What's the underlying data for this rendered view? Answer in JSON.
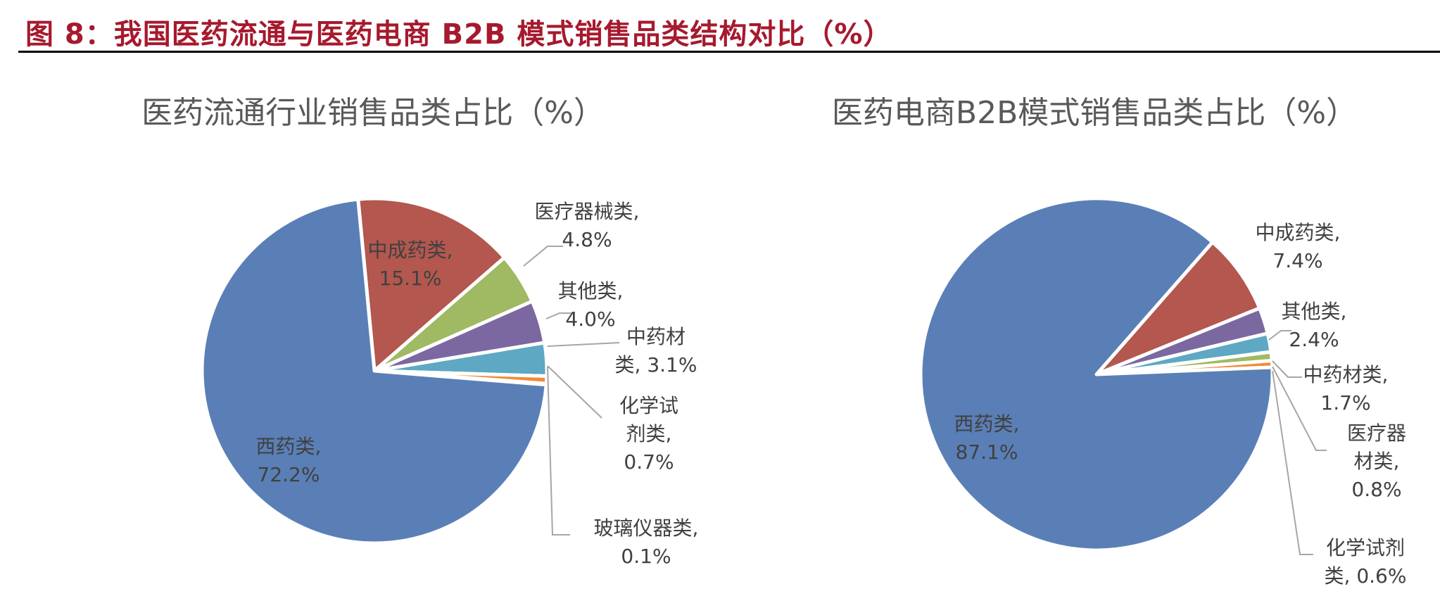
{
  "figure_title": "图 8：我国医药流通与医药电商 B2B 模式销售品类结构对比（%）",
  "colors": {
    "title_red": "#a6192e",
    "西药类": "#5a7fb6",
    "中成药类": "#b3574f",
    "医疗器械类": "#a0b963",
    "其他类": "#7b68a0",
    "中药材类": "#5ea8c3",
    "化学试剂类": "#f08b3a",
    "玻璃仪器类": "#b7c2d6",
    "leader_line": "#a6a6a6"
  },
  "chart_data": [
    {
      "type": "pie",
      "title": "医药流通行业销售品类占比（%）",
      "slices": [
        {
          "name": "中成药类",
          "value": 15.1,
          "label": [
            "中成药类,",
            "15.1%"
          ]
        },
        {
          "name": "医疗器械类",
          "value": 4.8,
          "label": [
            "医疗器械类,",
            "4.8%"
          ]
        },
        {
          "name": "其他类",
          "value": 4.0,
          "label": [
            "其他类,",
            "4.0%"
          ]
        },
        {
          "name": "中药材类",
          "value": 3.1,
          "label": [
            "中药材",
            "类, 3.1%"
          ]
        },
        {
          "name": "化学试剂类",
          "value": 0.7,
          "label": [
            "化学试",
            "剂类,",
            "0.7%"
          ]
        },
        {
          "name": "玻璃仪器类",
          "value": 0.1,
          "label": [
            "玻璃仪器类,",
            "0.1%"
          ]
        },
        {
          "name": "西药类",
          "value": 72.2,
          "label": [
            "西药类,",
            "72.2%"
          ]
        }
      ]
    },
    {
      "type": "pie",
      "title": "医药电商B2B模式销售品类占比（%）",
      "slices": [
        {
          "name": "中成药类",
          "value": 7.4,
          "label": [
            "中成药类,",
            "7.4%"
          ]
        },
        {
          "name": "其他类",
          "value": 2.4,
          "label": [
            "其他类,",
            "2.4%"
          ]
        },
        {
          "name": "中药材类",
          "value": 1.7,
          "label": [
            "中药材类,",
            "1.7%"
          ]
        },
        {
          "name": "医疗器械类",
          "value": 0.8,
          "label": [
            "医疗器",
            "材类,",
            "0.8%"
          ]
        },
        {
          "name": "化学试剂类",
          "value": 0.6,
          "label": [
            "化学试剂",
            "类, 0.6%"
          ]
        },
        {
          "name": "西药类",
          "value": 87.1,
          "label": [
            "西药类,",
            "87.1%"
          ]
        }
      ]
    }
  ]
}
